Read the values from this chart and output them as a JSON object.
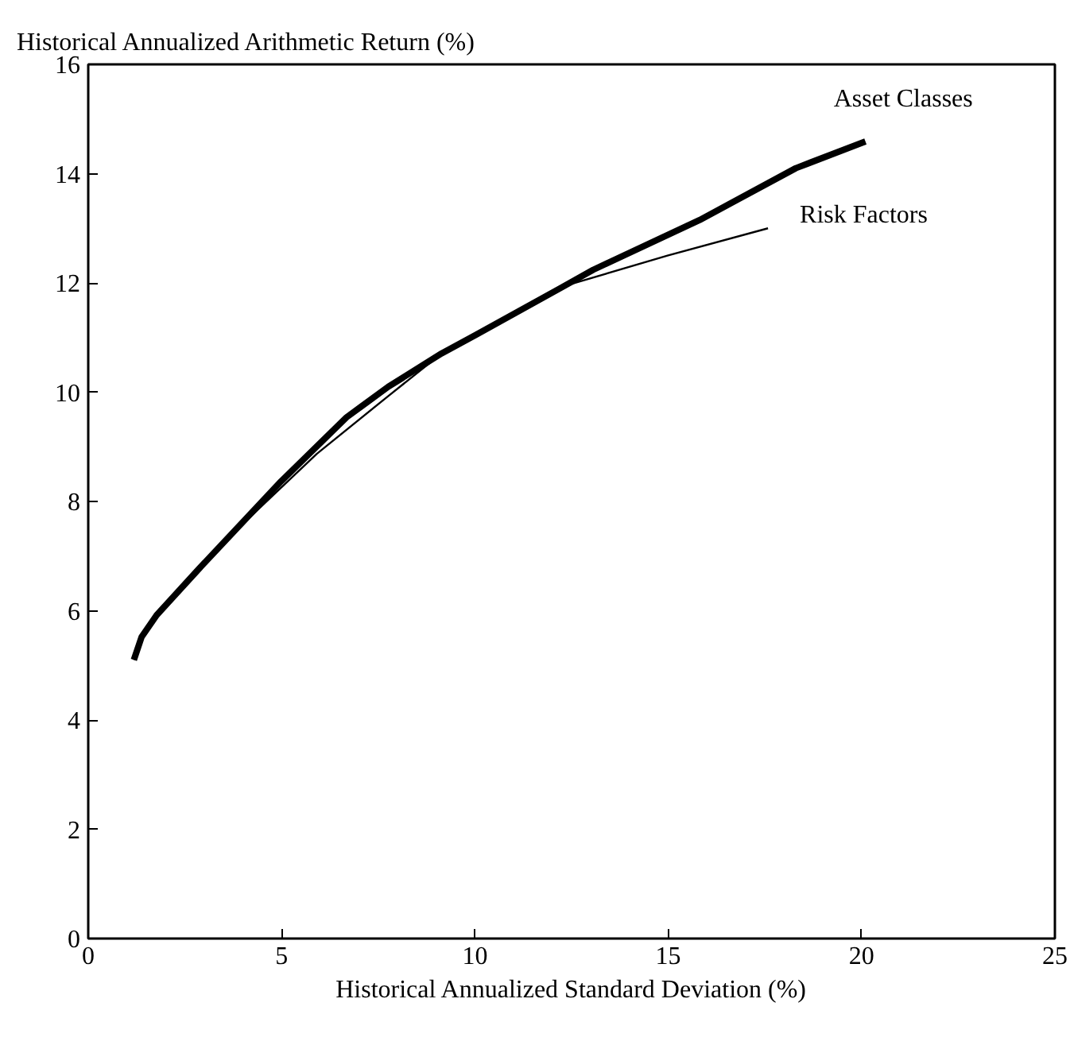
{
  "chart_data": {
    "type": "line",
    "xlabel": "Historical Annualized Standard Deviation (%)",
    "ylabel": "Historical Annualized Arithmetic Return (%)",
    "xlim": [
      0,
      25
    ],
    "xticks": [
      0,
      5,
      10,
      15,
      20,
      25
    ],
    "ylim": [
      0,
      16
    ],
    "yticks": [
      0,
      2,
      4,
      6,
      8,
      10,
      12,
      14,
      16
    ],
    "grid": false,
    "series": [
      {
        "name": "Asset Classes",
        "color": "#000000",
        "x": [
          1.18,
          1.38,
          1.77,
          2.84,
          4.99,
          6.68,
          7.76,
          9.14,
          10.03,
          12.2,
          13.06,
          15.81,
          18.3,
          20.1
        ],
        "values": [
          5.1,
          5.52,
          5.92,
          6.75,
          8.37,
          9.54,
          10.1,
          10.71,
          11.05,
          11.9,
          12.24,
          13.15,
          14.1,
          14.59
        ]
      },
      {
        "name": "Risk Factors",
        "color": "#000000",
        "x": [
          1.18,
          1.38,
          1.77,
          2.84,
          3.61,
          5.91,
          7.76,
          9.14,
          10.03,
          12.35,
          14.98,
          17.58
        ],
        "values": [
          5.1,
          5.52,
          5.92,
          6.7,
          7.33,
          8.87,
          9.93,
          10.71,
          11.05,
          11.95,
          12.5,
          13.0
        ]
      }
    ]
  }
}
